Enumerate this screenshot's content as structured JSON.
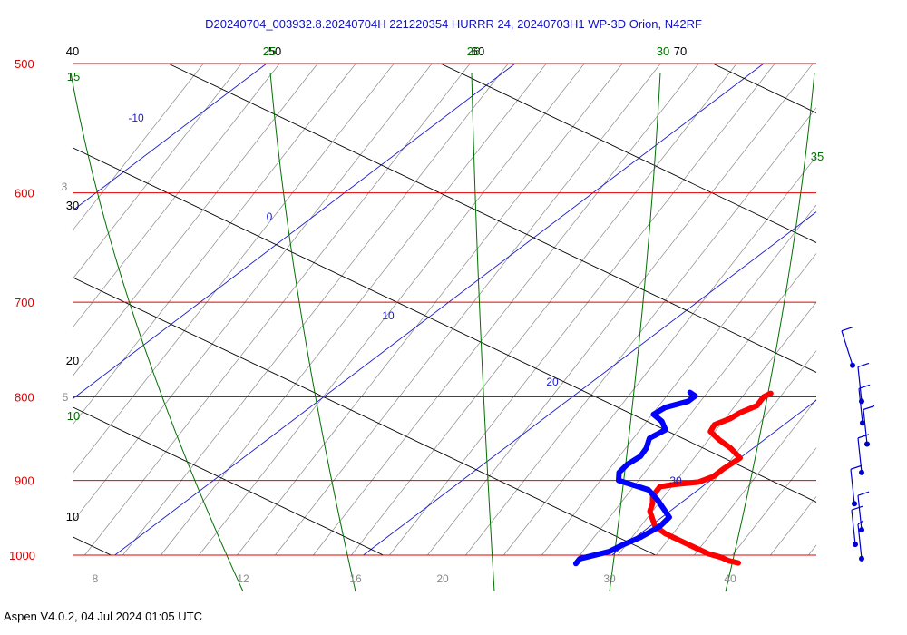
{
  "header": {
    "title": "D20240704_003932.8.20240704H 221220354 HURRR 24, 20240703H1 WP-3D Orion, N42RF"
  },
  "footer": {
    "text": "Aspen V4.0.2, 04 Jul 2024  01:05 UTC"
  },
  "colors": {
    "title": "#1010c0",
    "isobar": "#e00000",
    "isotherm": "#1a1acc",
    "dry_adiabat": "#000000",
    "moist_adiabat": "#007000",
    "mixing_ratio": "#8a8a8a",
    "temperature": "#ff0000",
    "dewpoint": "#0000ff",
    "wind_barb": "#0000cc"
  },
  "chart_data": {
    "type": "line",
    "subtype": "skew-t log-p",
    "title": "D20240704_003932.8.20240704H 221220354 HURRR 24, 20240703H1 WP-3D Orion, N42RF",
    "y_axis": {
      "scale": "log",
      "unit": "hPa",
      "range": [
        1000,
        500
      ],
      "ticks": [
        "500",
        "600",
        "700",
        "800",
        "900",
        "1000"
      ]
    },
    "isotherm_labels": [
      "-10",
      "0",
      "10",
      "20",
      "30"
    ],
    "dry_adiabat_labels": [
      {
        "text": "40",
        "at": "500"
      },
      {
        "text": "50",
        "at": "500"
      },
      {
        "text": "60",
        "at": "500"
      },
      {
        "text": "70",
        "at": "500"
      },
      {
        "text": "30",
        "at": "600"
      },
      {
        "text": "20",
        "at": "800"
      },
      {
        "text": "10",
        "at": "950"
      }
    ],
    "moist_adiabat_labels": [
      {
        "text": "15",
        "at": "left"
      },
      {
        "text": "25",
        "at": "500"
      },
      {
        "text": "26",
        "at": "500"
      },
      {
        "text": "30",
        "at": "500"
      },
      {
        "text": "35",
        "at": "right"
      },
      {
        "text": "10",
        "at": "left"
      }
    ],
    "mixing_ratio_labels": [
      "3",
      "5",
      "8",
      "12",
      "16",
      "20",
      "30",
      "40"
    ],
    "series": [
      {
        "kind": "temperature",
        "unit": "°C",
        "points": [
          {
            "p": 1011,
            "t": 25.5
          },
          {
            "p": 1008,
            "t": 25.0
          },
          {
            "p": 1003,
            "t": 24.5
          },
          {
            "p": 998,
            "t": 23.8
          },
          {
            "p": 990,
            "t": 23.0
          },
          {
            "p": 980,
            "t": 22.0
          },
          {
            "p": 970,
            "t": 21.0
          },
          {
            "p": 960,
            "t": 20.2
          },
          {
            "p": 950,
            "t": 19.7
          },
          {
            "p": 940,
            "t": 19.2
          },
          {
            "p": 930,
            "t": 18.9
          },
          {
            "p": 920,
            "t": 18.5
          },
          {
            "p": 908,
            "t": 18.3
          },
          {
            "p": 905,
            "t": 18.8
          },
          {
            "p": 902,
            "t": 19.6
          },
          {
            "p": 895,
            "t": 19.9
          },
          {
            "p": 885,
            "t": 19.9
          },
          {
            "p": 872,
            "t": 20.0
          },
          {
            "p": 860,
            "t": 19.1
          },
          {
            "p": 850,
            "t": 18.2
          },
          {
            "p": 840,
            "t": 17.4
          },
          {
            "p": 832,
            "t": 17.2
          },
          {
            "p": 825,
            "t": 17.5
          },
          {
            "p": 818,
            "t": 17.6
          },
          {
            "p": 810,
            "t": 17.9
          },
          {
            "p": 800,
            "t": 17.7
          },
          {
            "p": 796,
            "t": 17.8
          }
        ]
      },
      {
        "kind": "dewpoint",
        "unit": "°C",
        "points": [
          {
            "p": 1012,
            "t": 19.0
          },
          {
            "p": 1005,
            "t": 18.9
          },
          {
            "p": 995,
            "t": 19.7
          },
          {
            "p": 985,
            "t": 19.9
          },
          {
            "p": 975,
            "t": 20.2
          },
          {
            "p": 960,
            "t": 20.4
          },
          {
            "p": 948,
            "t": 20.3
          },
          {
            "p": 938,
            "t": 19.7
          },
          {
            "p": 925,
            "t": 18.9
          },
          {
            "p": 912,
            "t": 18.0
          },
          {
            "p": 900,
            "t": 16.3
          },
          {
            "p": 890,
            "t": 15.9
          },
          {
            "p": 880,
            "t": 15.8
          },
          {
            "p": 870,
            "t": 15.9
          },
          {
            "p": 860,
            "t": 15.7
          },
          {
            "p": 848,
            "t": 15.3
          },
          {
            "p": 838,
            "t": 15.5
          },
          {
            "p": 828,
            "t": 14.9
          },
          {
            "p": 820,
            "t": 14.2
          },
          {
            "p": 812,
            "t": 14.3
          },
          {
            "p": 805,
            "t": 14.9
          },
          {
            "p": 799,
            "t": 14.9
          },
          {
            "p": 795,
            "t": 14.5
          }
        ]
      }
    ],
    "wind_barbs": [
      {
        "p": 785,
        "dir": "NW",
        "speed_kt": 10
      },
      {
        "p": 805,
        "dir": "N",
        "speed_kt": 10
      },
      {
        "p": 830,
        "dir": "N",
        "speed_kt": 10
      },
      {
        "p": 855,
        "dir": "N",
        "speed_kt": 10
      },
      {
        "p": 890,
        "dir": "N",
        "speed_kt": 10
      },
      {
        "p": 930,
        "dir": "N",
        "speed_kt": 10
      },
      {
        "p": 965,
        "dir": "N",
        "speed_kt": 10
      },
      {
        "p": 985,
        "dir": "N",
        "speed_kt": 10
      },
      {
        "p": 1005,
        "dir": "N",
        "speed_kt": 5
      }
    ],
    "grid": true
  }
}
